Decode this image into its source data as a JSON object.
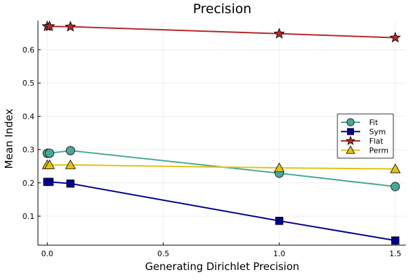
{
  "chart_data": {
    "type": "line",
    "title": "Precision",
    "xlabel": "Generating Dirichlet Precision",
    "ylabel": "Mean Index",
    "xlim": [
      -0.04,
      1.545
    ],
    "ylim": [
      0.013,
      0.687
    ],
    "x_ticks": [
      0.0,
      0.5,
      1.0,
      1.5
    ],
    "x_tick_labels": [
      "0.0",
      "0.5",
      "1.0",
      "1.5"
    ],
    "y_ticks": [
      0.1,
      0.2,
      0.3,
      0.4,
      0.5,
      0.6
    ],
    "y_tick_labels": [
      "0.1",
      "0.2",
      "0.3",
      "0.4",
      "0.5",
      "0.6"
    ],
    "grid": true,
    "legend_position": "right",
    "x": [
      0.0,
      0.01,
      0.1,
      1.0,
      1.5
    ],
    "series": [
      {
        "name": "Fit",
        "color": "#4aa897",
        "marker": "circle",
        "values": [
          0.289,
          0.289,
          0.297,
          0.229,
          0.189
        ]
      },
      {
        "name": "Sym",
        "color": "#00008b",
        "marker": "square",
        "values": [
          0.203,
          0.203,
          0.198,
          0.086,
          0.027
        ]
      },
      {
        "name": "Flat",
        "color": "#b2282c",
        "marker": "star",
        "values": [
          0.67,
          0.67,
          0.669,
          0.648,
          0.636
        ]
      },
      {
        "name": "Perm",
        "color": "#e5c015",
        "marker": "triangle",
        "values": [
          0.254,
          0.254,
          0.254,
          0.245,
          0.242
        ]
      }
    ]
  }
}
